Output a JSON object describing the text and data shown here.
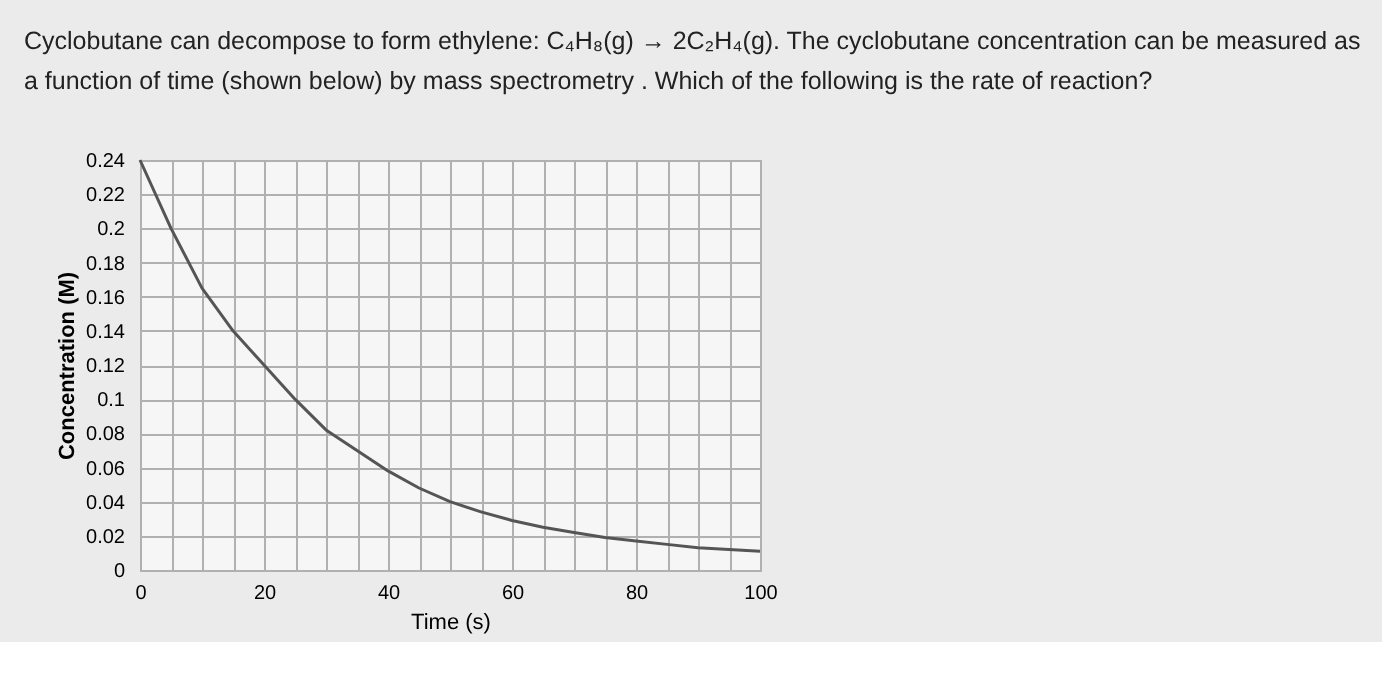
{
  "chart_data": {
    "type": "line",
    "title": "Cyclobutane can decompose to form ethylene: C₄H₈(g) → 2C₂H₄(g). The cyclobutane concentration can be measured as a function of time (shown below) by mass spectrometry . Which of the following is the rate of reaction?",
    "xlabel": "Time (s)",
    "ylabel": "Concentration (M)",
    "x": [
      0,
      5,
      10,
      15,
      20,
      25,
      30,
      35,
      40,
      45,
      50,
      55,
      60,
      65,
      70,
      75,
      80,
      85,
      90,
      95,
      100
    ],
    "series": [
      {
        "color": "#555555",
        "values": [
          0.24,
          0.2,
          0.165,
          0.14,
          0.12,
          0.1,
          0.082,
          0.07,
          0.058,
          0.048,
          0.04,
          0.034,
          0.029,
          0.025,
          0.022,
          0.019,
          0.017,
          0.015,
          0.013,
          0.012,
          0.011
        ]
      }
    ],
    "xlim": [
      0,
      100
    ],
    "xticks": [
      0,
      {
        "value": 5,
        "label": null
      },
      {
        "value": 10,
        "label": null
      },
      {
        "value": 15,
        "label": null
      },
      20,
      {
        "value": 25,
        "label": null
      },
      {
        "value": 30,
        "label": null
      },
      {
        "value": 35,
        "label": null
      },
      40,
      {
        "value": 45,
        "label": null
      },
      {
        "value": 50,
        "label": null
      },
      {
        "value": 55,
        "label": null
      },
      60,
      {
        "value": 65,
        "label": null
      },
      {
        "value": 70,
        "label": null
      },
      {
        "value": 75,
        "label": null
      },
      80,
      {
        "value": 85,
        "label": null
      },
      {
        "value": 90,
        "label": null
      },
      {
        "value": 95,
        "label": null
      },
      100
    ],
    "ylim": [
      0,
      0.24
    ],
    "yticks": [
      0,
      0.02,
      0.04,
      0.06,
      0.08,
      0.1,
      0.12,
      0.14,
      0.16,
      0.18,
      0.2,
      0.22,
      0.24
    ],
    "grid": true,
    "marker": "none",
    "line_style": "solid",
    "legend": false
  }
}
